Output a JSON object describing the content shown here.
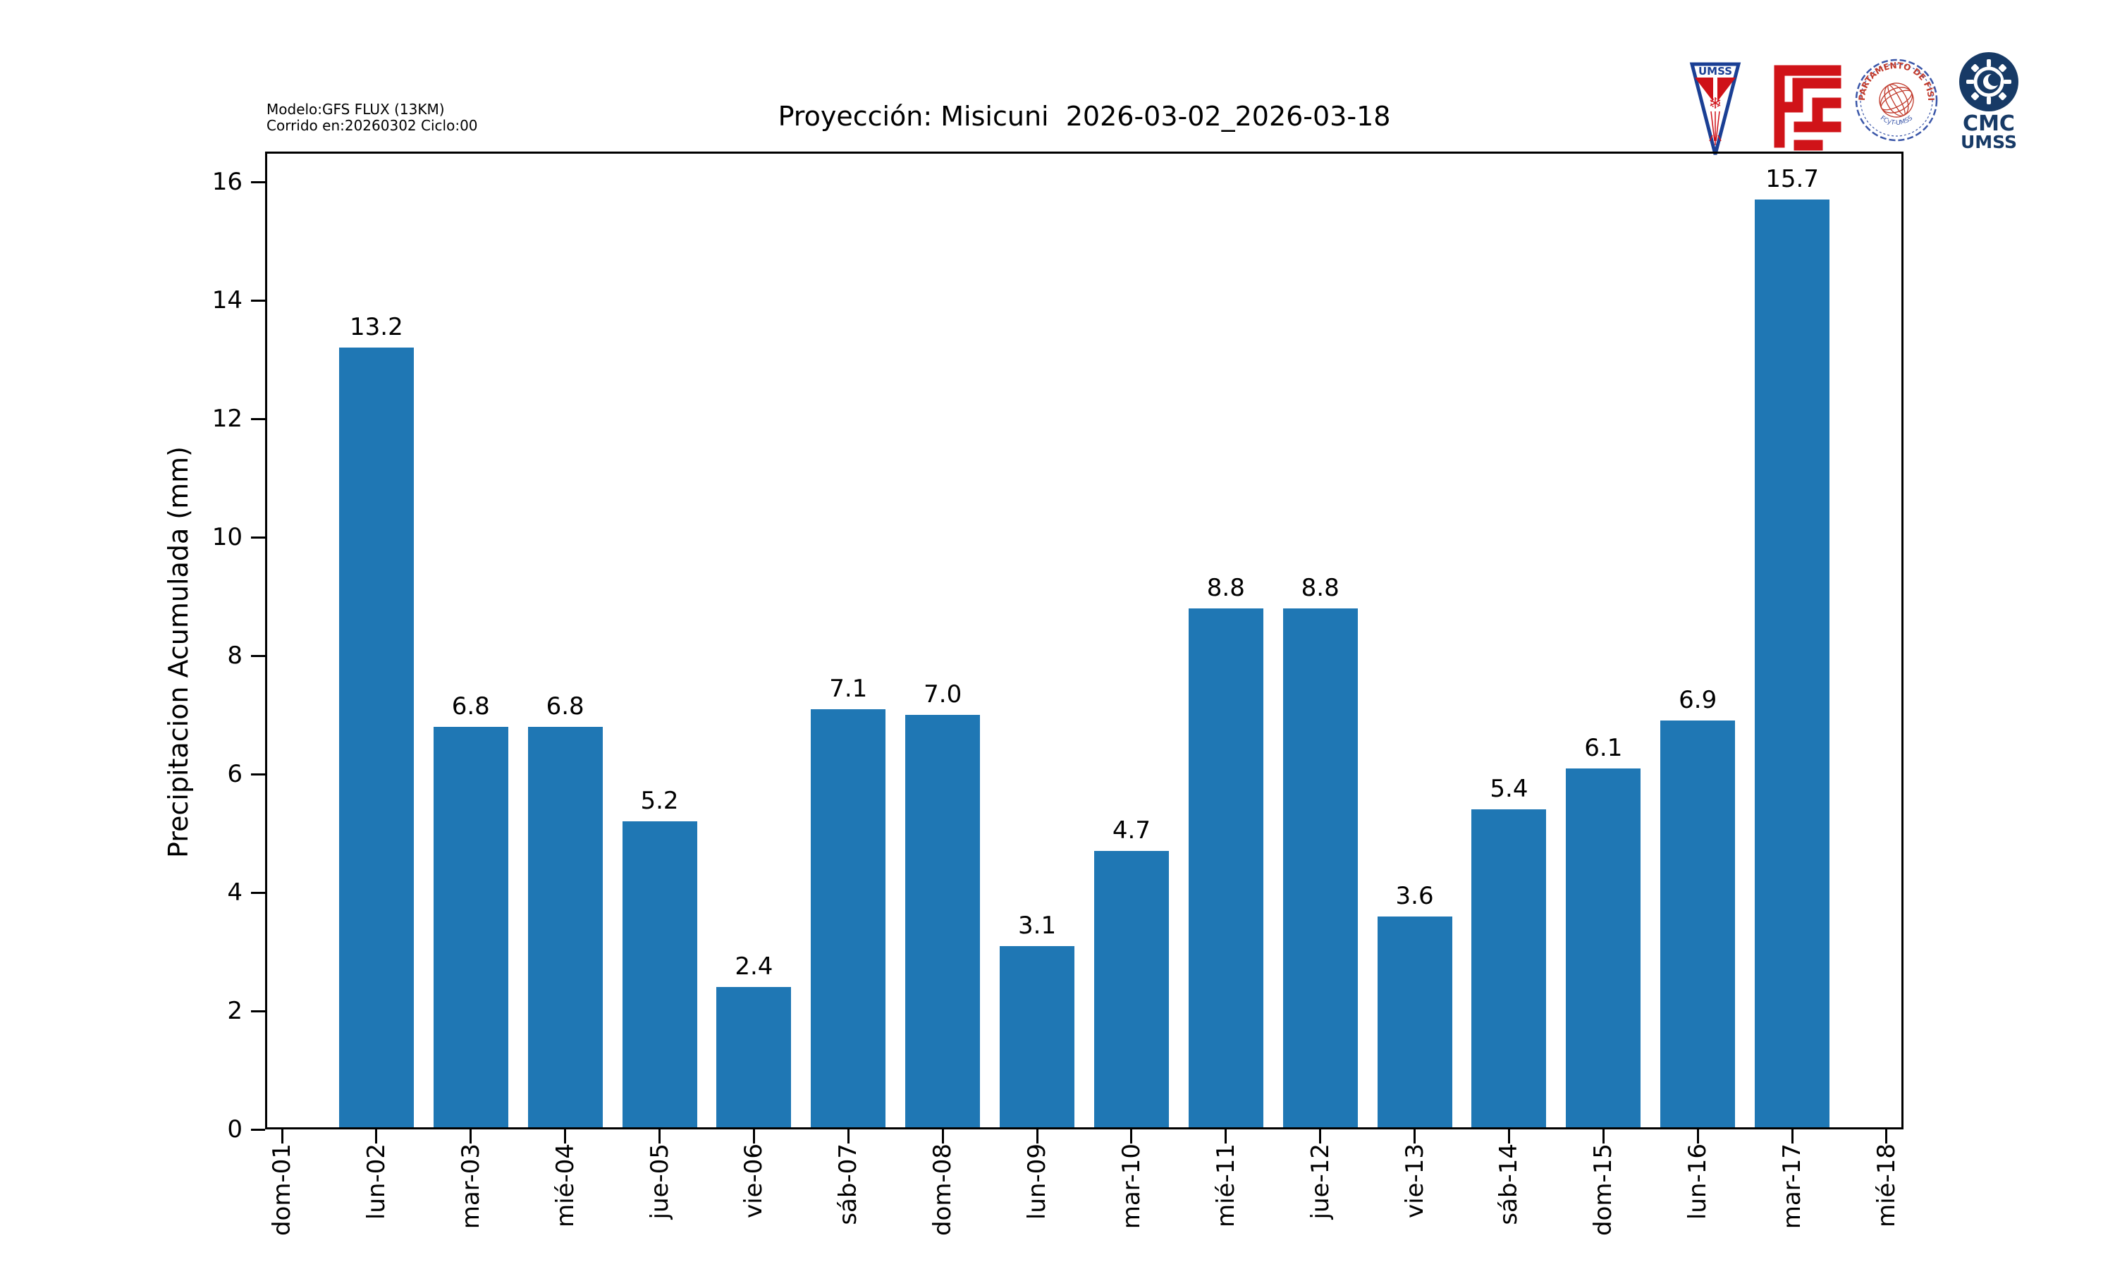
{
  "annotation": {
    "line1": "Modelo:GFS FLUX (13KM)",
    "line2": "Corrido en:20260302 Ciclo:00"
  },
  "logos": {
    "umss_pennant_text": "UMSS",
    "fisica_seal_text_top": "DEPARTAMENTO DE FÍSICA",
    "fisica_seal_text_bottom": "FCyT-UMSS",
    "cmc_line1": "CMC",
    "cmc_line2": "UMSS"
  },
  "chart_data": {
    "type": "bar",
    "title": "Proyección: Misicuni  2026-03-02_2026-03-18",
    "xlabel": "",
    "ylabel": "Precipitacion Acumulada (mm)",
    "categories": [
      "dom-01",
      "lun-02",
      "mar-03",
      "mié-04",
      "jue-05",
      "vie-06",
      "sáb-07",
      "dom-08",
      "lun-09",
      "mar-10",
      "mié-11",
      "jue-12",
      "vie-13",
      "sáb-14",
      "dom-15",
      "lun-16",
      "mar-17",
      "mié-18"
    ],
    "values": [
      0,
      13.2,
      6.8,
      6.8,
      5.2,
      2.4,
      7.1,
      7.0,
      3.1,
      4.7,
      8.8,
      8.8,
      3.6,
      5.4,
      6.1,
      6.9,
      15.7,
      0
    ],
    "bar_labels": [
      "",
      "13.2",
      "6.8",
      "6.8",
      "5.2",
      "2.4",
      "7.1",
      "7.0",
      "3.1",
      "4.7",
      "8.8",
      "8.8",
      "3.6",
      "5.4",
      "6.1",
      "6.9",
      "15.7",
      ""
    ],
    "yticks": [
      0,
      2,
      4,
      6,
      8,
      10,
      12,
      14,
      16
    ],
    "ylim": [
      0,
      16.5
    ],
    "grid": false,
    "legend": null,
    "bar_color": "#1f77b4",
    "axis_color": "#000000"
  }
}
